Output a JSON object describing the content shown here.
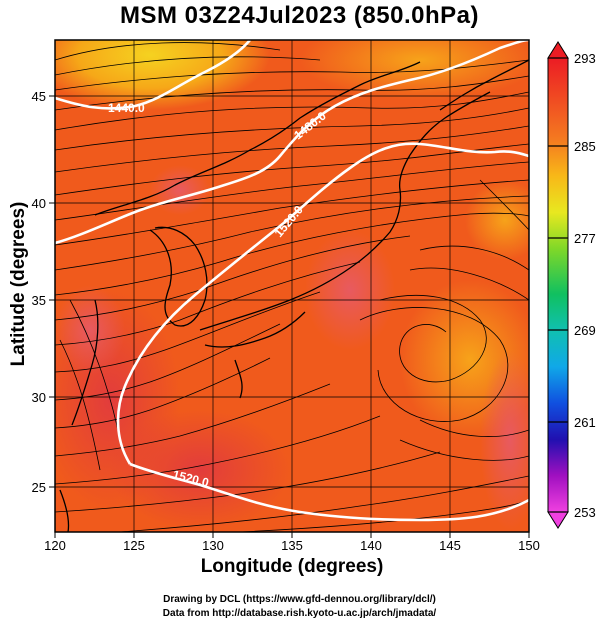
{
  "title": "MSM 03Z24Jul2023 (850.0hPa)",
  "xlabel": "Longitude (degrees)",
  "ylabel": "Latitude  (degrees)",
  "credits": {
    "line1": "Drawing by DCL (https://www.gfd-dennou.org/library/dcl/)",
    "line2": "Data from http://database.rish.kyoto-u.ac.jp/arch/jmadata/"
  },
  "x_ticks": [
    "120",
    "125",
    "130",
    "135",
    "140",
    "145",
    "150"
  ],
  "y_ticks": [
    "25",
    "30",
    "35",
    "40",
    "45"
  ],
  "colorbar": {
    "labels": [
      "293",
      "285",
      "277",
      "269",
      "261",
      "253"
    ],
    "colors": [
      "#e8003c",
      "#f06020",
      "#f8a000",
      "#f0e000",
      "#80e000",
      "#00c060",
      "#00c0c0",
      "#0080ff",
      "#0020c0",
      "#6000c0",
      "#c000c0",
      "#ff40ff"
    ]
  },
  "contours": [
    {
      "label": "1440.0"
    },
    {
      "label": "1480.0"
    },
    {
      "label": "1520.0"
    },
    {
      "label": "1520.0"
    }
  ],
  "colors": {
    "map_base": "#f05a1c",
    "warm": "#e83a38",
    "cool": "#f8a018",
    "coolest": "#f8d020",
    "contour": "#ffffff"
  }
}
